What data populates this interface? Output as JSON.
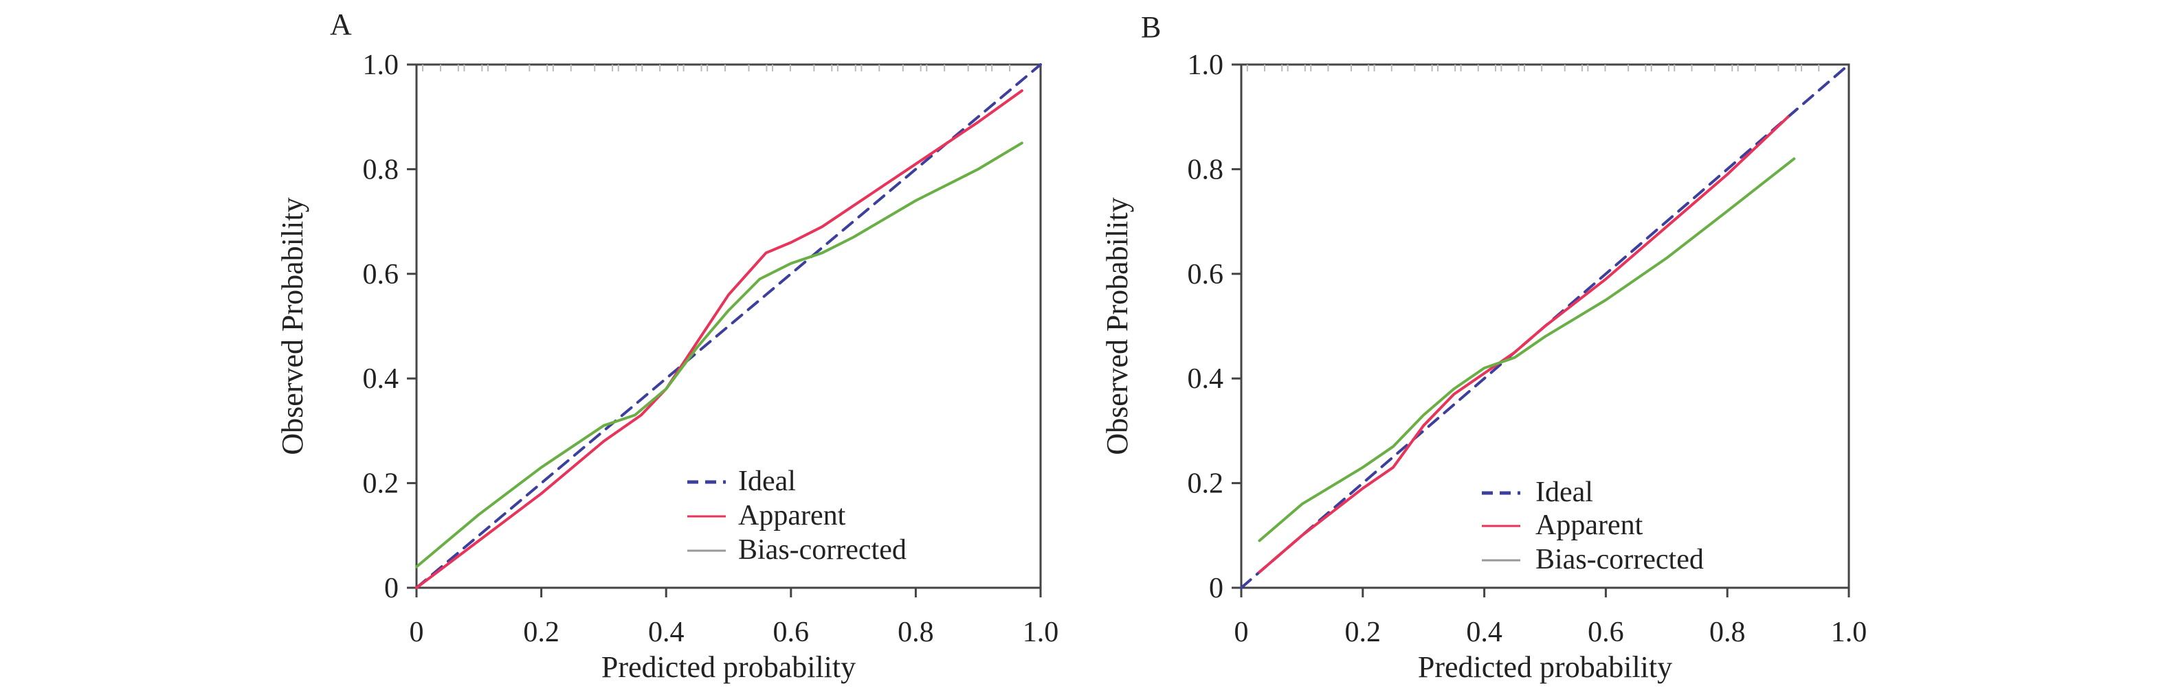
{
  "chart_data": [
    {
      "type": "line",
      "panel_label": "A",
      "xlabel": "Predicted probability",
      "ylabel": "Observed Probability",
      "xlim": [
        0,
        1
      ],
      "ylim": [
        0,
        1
      ],
      "xticks": [
        "0",
        "0.2",
        "0.4",
        "0.6",
        "0.8",
        "1.0"
      ],
      "yticks": [
        "0",
        "0.2",
        "0.4",
        "0.6",
        "0.8",
        "1.0"
      ],
      "grid": false,
      "legend_position": "lower-right",
      "series": [
        {
          "name": "Ideal",
          "style": "dashed",
          "color": "#3d3f9c",
          "x": [
            0,
            1
          ],
          "y": [
            0,
            1
          ]
        },
        {
          "name": "Apparent",
          "style": "solid",
          "color": "#e8335a",
          "x": [
            0,
            0.1,
            0.2,
            0.3,
            0.36,
            0.4,
            0.45,
            0.5,
            0.56,
            0.6,
            0.65,
            0.7,
            0.8,
            0.9,
            0.97
          ],
          "y": [
            0,
            0.09,
            0.18,
            0.28,
            0.33,
            0.38,
            0.47,
            0.56,
            0.64,
            0.66,
            0.69,
            0.73,
            0.81,
            0.89,
            0.95
          ]
        },
        {
          "name": "Bias-corrected",
          "style": "solid",
          "color": "#6aaf45",
          "x": [
            0,
            0.1,
            0.2,
            0.3,
            0.35,
            0.4,
            0.45,
            0.5,
            0.55,
            0.6,
            0.65,
            0.7,
            0.8,
            0.9,
            0.97
          ],
          "y": [
            0.04,
            0.14,
            0.23,
            0.31,
            0.33,
            0.38,
            0.46,
            0.53,
            0.59,
            0.62,
            0.64,
            0.67,
            0.74,
            0.8,
            0.85
          ]
        }
      ]
    },
    {
      "type": "line",
      "panel_label": "B",
      "xlabel": "Predicted probability",
      "ylabel": "Observed Probability",
      "xlim": [
        0,
        1
      ],
      "ylim": [
        0,
        1
      ],
      "xticks": [
        "0",
        "0.2",
        "0.4",
        "0.6",
        "0.8",
        "1.0"
      ],
      "yticks": [
        "0",
        "0.2",
        "0.4",
        "0.6",
        "0.8",
        "1.0"
      ],
      "grid": false,
      "legend_position": "lower-right",
      "series": [
        {
          "name": "Ideal",
          "style": "dashed",
          "color": "#3d3f9c",
          "x": [
            0,
            1
          ],
          "y": [
            0,
            1
          ]
        },
        {
          "name": "Apparent",
          "style": "solid",
          "color": "#e8335a",
          "x": [
            0.03,
            0.1,
            0.2,
            0.25,
            0.3,
            0.35,
            0.4,
            0.45,
            0.5,
            0.6,
            0.7,
            0.8,
            0.9
          ],
          "y": [
            0.03,
            0.1,
            0.19,
            0.23,
            0.31,
            0.37,
            0.41,
            0.45,
            0.5,
            0.59,
            0.69,
            0.79,
            0.9
          ]
        },
        {
          "name": "Bias-corrected",
          "style": "solid",
          "color": "#6aaf45",
          "x": [
            0.03,
            0.1,
            0.2,
            0.25,
            0.3,
            0.35,
            0.4,
            0.45,
            0.5,
            0.6,
            0.7,
            0.8,
            0.91
          ],
          "y": [
            0.09,
            0.16,
            0.23,
            0.27,
            0.33,
            0.38,
            0.42,
            0.44,
            0.48,
            0.55,
            0.63,
            0.72,
            0.82
          ]
        }
      ]
    }
  ]
}
